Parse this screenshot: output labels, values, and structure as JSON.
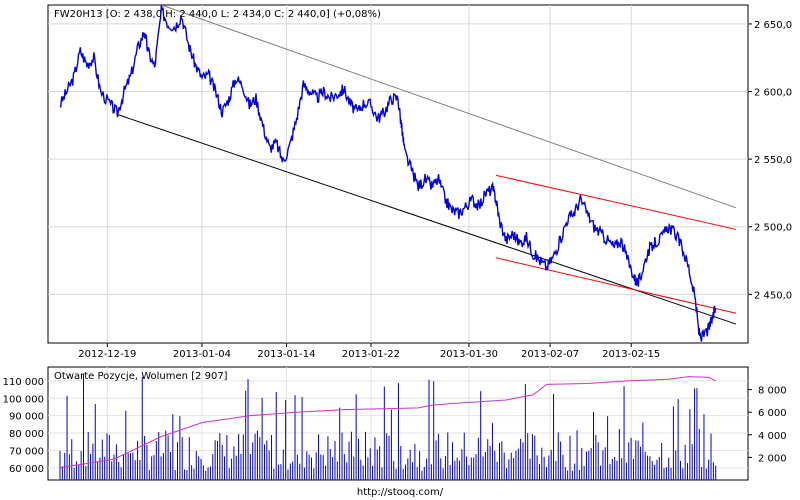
{
  "chart_data": [
    {
      "type": "line",
      "header": "FW20H13 [O: 2 438,0  H: 2 440,0  L: 2 434,0  C: 2 440,0] (+0,08%)",
      "series_color": "#0000dd",
      "y_ticks": [
        "2 650,0",
        "2 600,0",
        "2 550,0",
        "2 500,0",
        "2 450,0"
      ],
      "y_tick_values": [
        2650,
        2600,
        2550,
        2500,
        2450
      ],
      "ylim": [
        2414,
        2664
      ],
      "x_ticks": [
        "2012-12-19",
        "2013-01-04",
        "2013-01-14",
        "2013-01-22",
        "2013-01-30",
        "2013-02-07",
        "2013-02-15"
      ],
      "x_tick_values": [
        0.07,
        0.21,
        0.335,
        0.46,
        0.605,
        0.725,
        0.845
      ],
      "xlim": [
        0,
        1
      ],
      "trend_lines": [
        {
          "color": "#808080",
          "points": [
            [
              0.15,
              2664
            ],
            [
              1.0,
              2514
            ]
          ]
        },
        {
          "color": "#000000",
          "points": [
            [
              0.085,
              2583
            ],
            [
              1.0,
              2428
            ]
          ]
        },
        {
          "color": "#ff0000",
          "points": [
            [
              0.645,
              2538
            ],
            [
              1.0,
              2498
            ]
          ]
        },
        {
          "color": "#ff0000",
          "points": [
            [
              0.645,
              2477
            ],
            [
              1.0,
              2436
            ]
          ]
        }
      ],
      "points": [
        [
          0.0,
          2590
        ],
        [
          0.01,
          2600
        ],
        [
          0.02,
          2610
        ],
        [
          0.03,
          2630
        ],
        [
          0.04,
          2620
        ],
        [
          0.05,
          2625
        ],
        [
          0.06,
          2600
        ],
        [
          0.075,
          2590
        ],
        [
          0.085,
          2584
        ],
        [
          0.095,
          2600
        ],
        [
          0.105,
          2612
        ],
        [
          0.115,
          2632
        ],
        [
          0.125,
          2645
        ],
        [
          0.13,
          2630
        ],
        [
          0.14,
          2618
        ],
        [
          0.15,
          2660
        ],
        [
          0.16,
          2650
        ],
        [
          0.17,
          2648
        ],
        [
          0.18,
          2656
        ],
        [
          0.19,
          2635
        ],
        [
          0.2,
          2620
        ],
        [
          0.21,
          2610
        ],
        [
          0.22,
          2612
        ],
        [
          0.23,
          2600
        ],
        [
          0.24,
          2585
        ],
        [
          0.25,
          2595
        ],
        [
          0.26,
          2610
        ],
        [
          0.27,
          2605
        ],
        [
          0.28,
          2590
        ],
        [
          0.29,
          2595
        ],
        [
          0.3,
          2575
        ],
        [
          0.31,
          2558
        ],
        [
          0.32,
          2562
        ],
        [
          0.33,
          2548
        ],
        [
          0.34,
          2560
        ],
        [
          0.35,
          2580
        ],
        [
          0.36,
          2605
        ],
        [
          0.37,
          2600
        ],
        [
          0.38,
          2595
        ],
        [
          0.39,
          2600
        ],
        [
          0.4,
          2595
        ],
        [
          0.41,
          2598
        ],
        [
          0.42,
          2602
        ],
        [
          0.43,
          2590
        ],
        [
          0.44,
          2585
        ],
        [
          0.45,
          2592
        ],
        [
          0.46,
          2590
        ],
        [
          0.47,
          2580
        ],
        [
          0.48,
          2585
        ],
        [
          0.49,
          2595
        ],
        [
          0.5,
          2595
        ],
        [
          0.505,
          2575
        ],
        [
          0.51,
          2555
        ],
        [
          0.52,
          2542
        ],
        [
          0.53,
          2530
        ],
        [
          0.54,
          2535
        ],
        [
          0.55,
          2530
        ],
        [
          0.56,
          2535
        ],
        [
          0.57,
          2520
        ],
        [
          0.58,
          2512
        ],
        [
          0.59,
          2510
        ],
        [
          0.6,
          2515
        ],
        [
          0.61,
          2520
        ],
        [
          0.62,
          2515
        ],
        [
          0.63,
          2525
        ],
        [
          0.64,
          2528
        ],
        [
          0.645,
          2520
        ],
        [
          0.65,
          2505
        ],
        [
          0.66,
          2490
        ],
        [
          0.67,
          2495
        ],
        [
          0.68,
          2488
        ],
        [
          0.69,
          2492
        ],
        [
          0.7,
          2480
        ],
        [
          0.71,
          2475
        ],
        [
          0.72,
          2470
        ],
        [
          0.73,
          2478
        ],
        [
          0.74,
          2490
        ],
        [
          0.75,
          2505
        ],
        [
          0.76,
          2510
        ],
        [
          0.77,
          2520
        ],
        [
          0.78,
          2510
        ],
        [
          0.79,
          2500
        ],
        [
          0.8,
          2495
        ],
        [
          0.81,
          2490
        ],
        [
          0.82,
          2485
        ],
        [
          0.83,
          2490
        ],
        [
          0.84,
          2475
        ],
        [
          0.85,
          2462
        ],
        [
          0.855,
          2458
        ],
        [
          0.86,
          2465
        ],
        [
          0.87,
          2482
        ],
        [
          0.88,
          2488
        ],
        [
          0.89,
          2492
        ],
        [
          0.9,
          2500
        ],
        [
          0.91,
          2495
        ],
        [
          0.92,
          2485
        ],
        [
          0.93,
          2470
        ],
        [
          0.94,
          2445
        ],
        [
          0.945,
          2422
        ],
        [
          0.95,
          2418
        ],
        [
          0.96,
          2425
        ],
        [
          0.965,
          2432
        ],
        [
          0.97,
          2440
        ]
      ]
    },
    {
      "type": "bar",
      "header": "Otwarte Pozycje, Wolumen [2 907]",
      "bar_color": "#0000cc",
      "line_color": "#cc33cc",
      "left_ticks": [
        "110 000",
        "100 000",
        "90 000",
        "80 000",
        "70 000",
        "60 000"
      ],
      "left_tick_values": [
        110000,
        100000,
        90000,
        80000,
        70000,
        60000
      ],
      "left_ylim": [
        53000,
        118000
      ],
      "right_ticks": [
        "8 000",
        "6 000",
        "4 000",
        "2 000"
      ],
      "right_tick_values": [
        8000,
        6000,
        4000,
        2000
      ],
      "right_ylim": [
        0,
        10000
      ],
      "open_interest_points": [
        [
          0.0,
          60000
        ],
        [
          0.08,
          65000
        ],
        [
          0.15,
          78000
        ],
        [
          0.21,
          86000
        ],
        [
          0.28,
          90000
        ],
        [
          0.35,
          92000
        ],
        [
          0.42,
          93500
        ],
        [
          0.48,
          94000
        ],
        [
          0.53,
          94500
        ],
        [
          0.55,
          96000
        ],
        [
          0.58,
          97000
        ],
        [
          0.62,
          98000
        ],
        [
          0.66,
          99000
        ],
        [
          0.7,
          102000
        ],
        [
          0.72,
          108000
        ],
        [
          0.78,
          108500
        ],
        [
          0.84,
          110000
        ],
        [
          0.9,
          111000
        ],
        [
          0.93,
          112500
        ],
        [
          0.96,
          112000
        ],
        [
          0.97,
          110000
        ]
      ],
      "volume_seed": 7,
      "volume_count": 280
    }
  ],
  "footer": {
    "url": "http://stooq.com/"
  }
}
